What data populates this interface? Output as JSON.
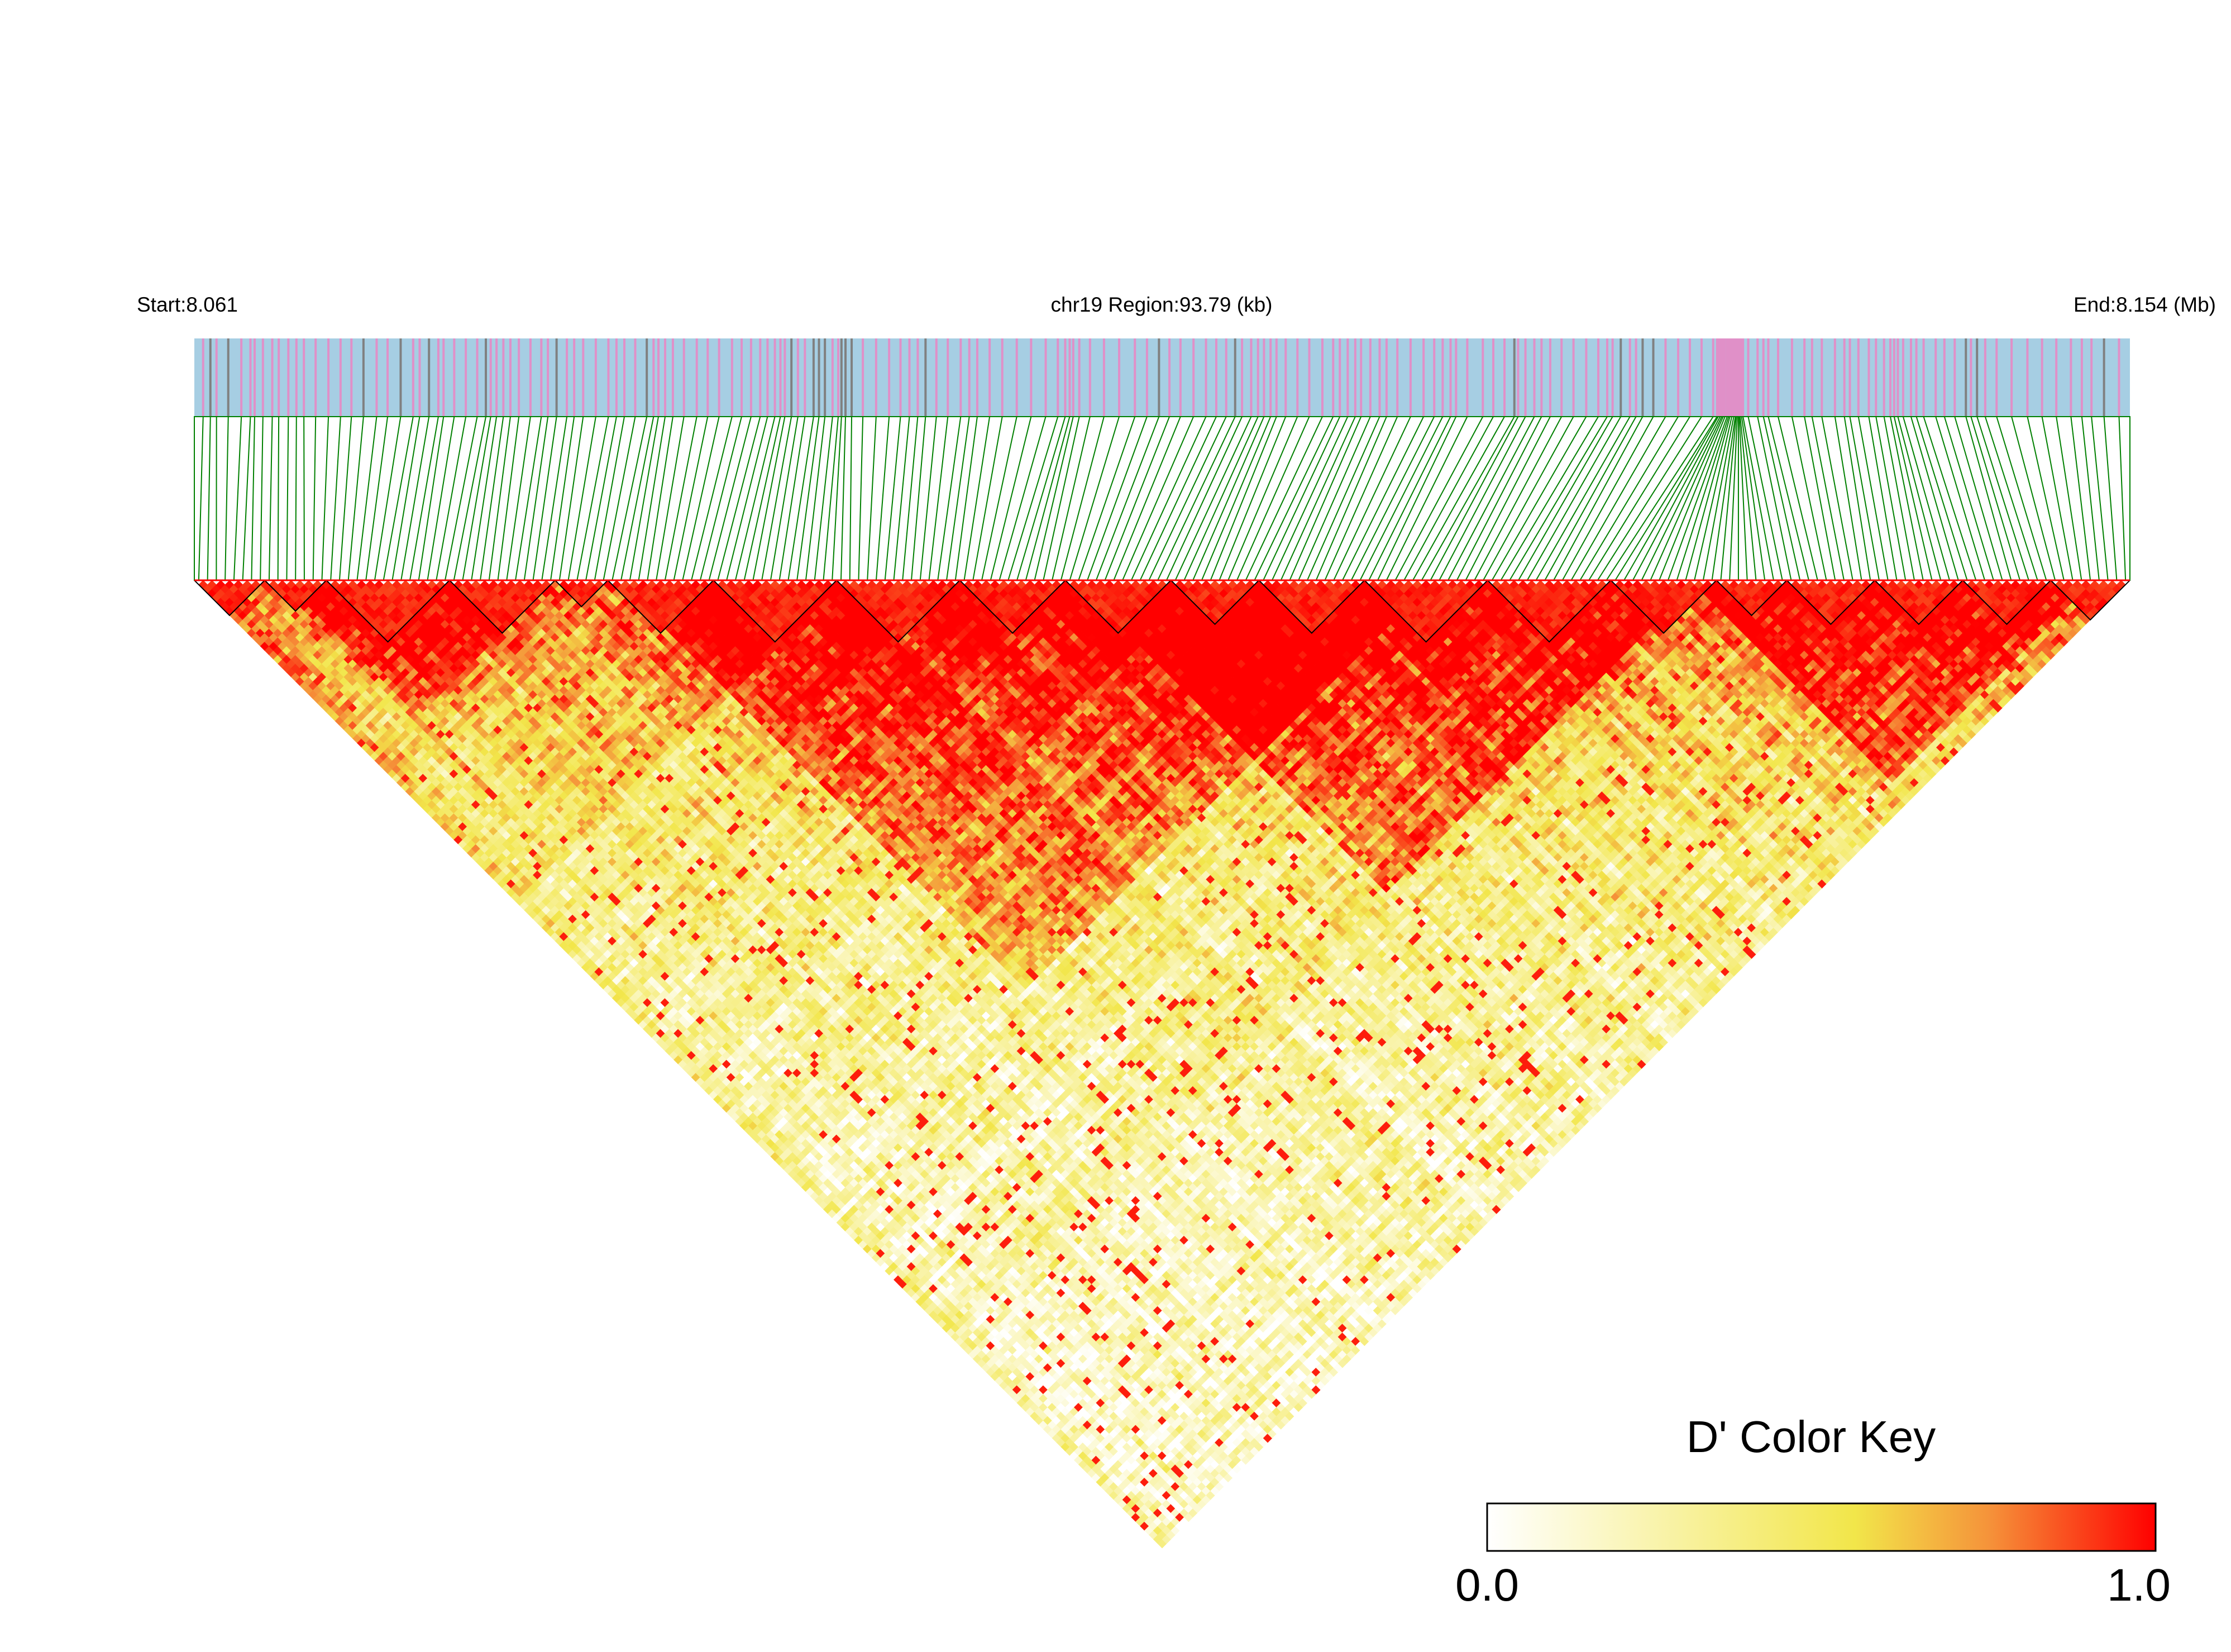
{
  "chart_data": {
    "type": "heatmap",
    "title": "",
    "region_labels": {
      "start": "Start:8.061",
      "center": "chr19 Region:93.79 (kb)",
      "end": "End:8.154 (Mb)"
    },
    "region": {
      "chromosome": "chr19",
      "start_mb": 8.061,
      "end_mb": 8.154,
      "length_kb": 93.79
    },
    "colors": {
      "track_background": "#a6cee3",
      "variant_tick_pink": "#e090c8",
      "variant_tick_gray": "#808080",
      "connector_lines": "#008000",
      "blocks_outline": "#000000",
      "scale_low": "#ffffff",
      "scale_mid": "#f2e64a",
      "scale_high": "#ff0000"
    },
    "color_key": {
      "title": "D' Color Key",
      "min_label": "0.0",
      "max_label": "1.0",
      "min": 0.0,
      "max": 1.0
    },
    "metric": "D'"
  }
}
